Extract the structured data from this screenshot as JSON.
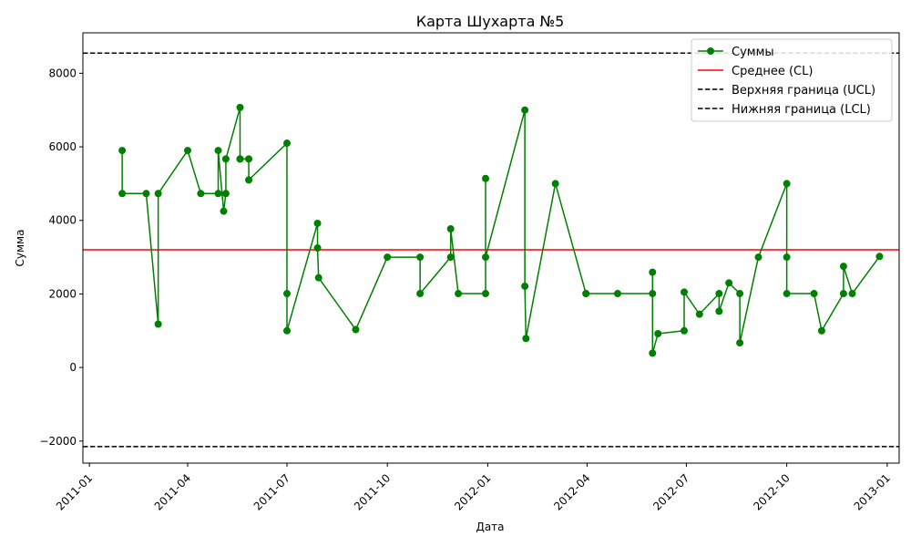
{
  "chart_data": {
    "type": "line",
    "title": "Карта Шухарта №5",
    "xlabel": "Дата",
    "ylabel": "Сумма",
    "xlim": [
      "2010-12-26",
      "2013-01-12"
    ],
    "ylim": [
      -2600,
      9100
    ],
    "x_ticks": [
      "2011-01-01",
      "2011-04-01",
      "2011-07-01",
      "2011-10-01",
      "2012-01-01",
      "2012-04-01",
      "2012-07-01",
      "2012-10-01",
      "2013-01-01"
    ],
    "x_tick_labels": [
      "2011-01",
      "2011-04",
      "2011-07",
      "2011-10",
      "2012-01",
      "2012-04",
      "2012-07",
      "2012-10",
      "2013-01"
    ],
    "y_ticks": [
      -2000,
      0,
      2000,
      4000,
      6000,
      8000
    ],
    "y_tick_labels": [
      "−2000",
      "0",
      "2000",
      "4000",
      "6000",
      "8000"
    ],
    "grid": false,
    "legend_position": "top-right",
    "colors": {
      "series": "#008000",
      "cl": "#ff0000",
      "limits": "#000000"
    },
    "series": [
      {
        "name": "Суммы",
        "x": [
          "2011-01-31",
          "2011-01-31",
          "2011-02-22",
          "2011-03-05",
          "2011-03-05",
          "2011-04-01",
          "2011-04-13",
          "2011-04-29",
          "2011-04-29",
          "2011-05-04",
          "2011-05-06",
          "2011-05-06",
          "2011-05-19",
          "2011-05-19",
          "2011-05-19",
          "2011-05-27",
          "2011-05-27",
          "2011-07-01",
          "2011-07-01",
          "2011-07-01",
          "2011-07-29",
          "2011-07-29",
          "2011-07-30",
          "2011-09-02",
          "2011-10-01",
          "2011-10-31",
          "2011-10-31",
          "2011-11-28",
          "2011-11-28",
          "2011-12-05",
          "2011-12-30",
          "2011-12-30",
          "2011-12-30",
          "2012-02-04",
          "2012-02-04",
          "2012-02-05",
          "2012-03-03",
          "2012-03-31",
          "2012-03-31",
          "2012-04-29",
          "2012-05-31",
          "2012-05-31",
          "2012-05-31",
          "2012-06-05",
          "2012-06-29",
          "2012-06-29",
          "2012-07-13",
          "2012-07-31",
          "2012-07-31",
          "2012-08-09",
          "2012-08-19",
          "2012-08-19",
          "2012-09-05",
          "2012-10-01",
          "2012-10-01",
          "2012-10-01",
          "2012-10-26",
          "2012-11-02",
          "2012-11-22",
          "2012-11-22",
          "2012-11-30",
          "2012-12-25"
        ],
        "y": [
          5900,
          4730,
          4730,
          1180,
          4730,
          5900,
          4730,
          4730,
          5900,
          4250,
          4730,
          5670,
          7070,
          5670,
          5670,
          5670,
          5100,
          6100,
          2010,
          1000,
          3920,
          3250,
          2440,
          1030,
          3000,
          3000,
          2010,
          3000,
          3770,
          2010,
          2010,
          5140,
          3000,
          7000,
          2210,
          790,
          5000,
          2010,
          2010,
          2010,
          2010,
          2590,
          390,
          920,
          1000,
          2050,
          1450,
          2010,
          1530,
          2300,
          2010,
          670,
          3000,
          5000,
          3000,
          2010,
          2010,
          1000,
          2010,
          2750,
          2010,
          3020
        ]
      }
    ],
    "reference_lines": [
      {
        "name": "Среднее (CL)",
        "value": 3200,
        "style": "solid",
        "color": "#ff0000"
      },
      {
        "name": "Верхняя граница (UCL)",
        "value": 8550,
        "style": "dashed",
        "color": "#000000"
      },
      {
        "name": "Нижняя граница (LCL)",
        "value": -2150,
        "style": "dashed",
        "color": "#000000"
      }
    ],
    "legend": [
      "Суммы",
      "Среднее (CL)",
      "Верхняя граница (UCL)",
      "Нижняя граница (LCL)"
    ]
  }
}
